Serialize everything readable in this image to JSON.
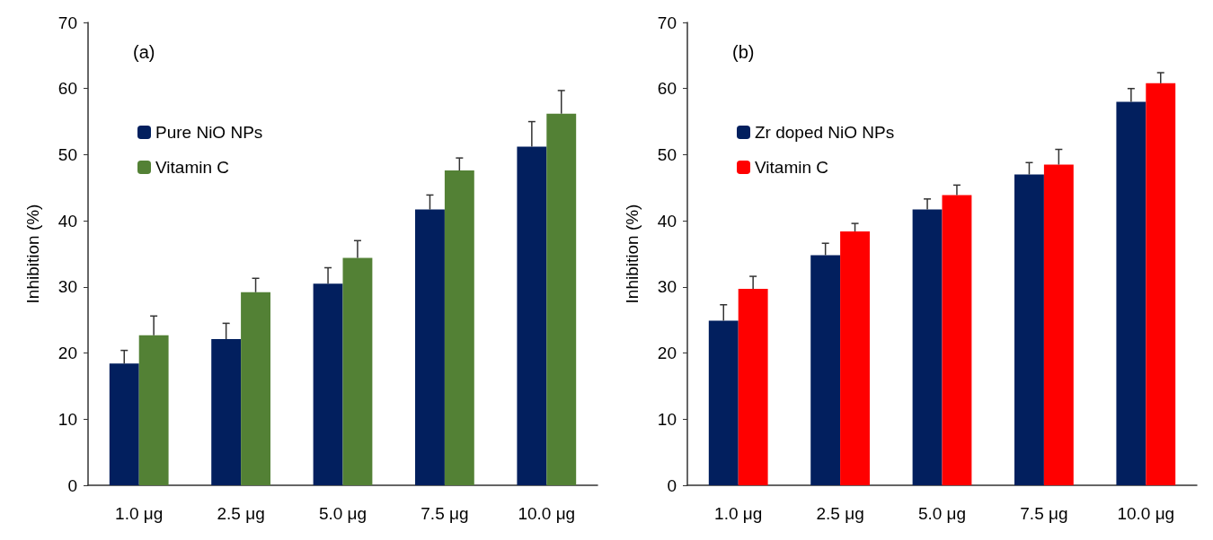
{
  "chart_data": [
    {
      "type": "bar",
      "annotations": [
        "(a)"
      ],
      "ylabel": "Inhibition (%)",
      "categories": [
        "1.0 μg",
        "2.5 μg",
        "5.0 μg",
        "7.5 μg",
        "10.0 μg"
      ],
      "ylim": [
        0,
        70
      ],
      "yticks": [
        0,
        10,
        20,
        30,
        40,
        50,
        60,
        70
      ],
      "grid": false,
      "legend": "top left",
      "series": [
        {
          "name": "Pure NiO NPs",
          "color": "#021f5e",
          "values": [
            18.4,
            22.1,
            30.5,
            41.7,
            51.2
          ],
          "errors": [
            2.0,
            2.4,
            2.4,
            2.2,
            3.8
          ]
        },
        {
          "name": "Vitamin C",
          "color": "#538135",
          "values": [
            22.7,
            29.2,
            34.4,
            47.6,
            56.2
          ],
          "errors": [
            2.9,
            2.1,
            2.6,
            1.9,
            3.5
          ]
        }
      ]
    },
    {
      "type": "bar",
      "annotations": [
        "(b)"
      ],
      "ylabel": "Inhibition (%)",
      "categories": [
        "1.0 μg",
        "2.5 μg",
        "5.0 μg",
        "7.5 μg",
        "10.0 μg"
      ],
      "ylim": [
        0,
        70
      ],
      "yticks": [
        0,
        10,
        20,
        30,
        40,
        50,
        60,
        70
      ],
      "grid": false,
      "legend": "top left",
      "series": [
        {
          "name": "Zr doped NiO NPs",
          "color": "#021f5e",
          "values": [
            24.9,
            34.8,
            41.7,
            47.0,
            58.0
          ],
          "errors": [
            2.4,
            1.8,
            1.6,
            1.8,
            2.0
          ]
        },
        {
          "name": "Vitamin C",
          "color": "#ff0000",
          "values": [
            29.7,
            38.4,
            43.9,
            48.5,
            60.8
          ],
          "errors": [
            1.9,
            1.2,
            1.5,
            2.3,
            1.6
          ]
        }
      ]
    }
  ]
}
